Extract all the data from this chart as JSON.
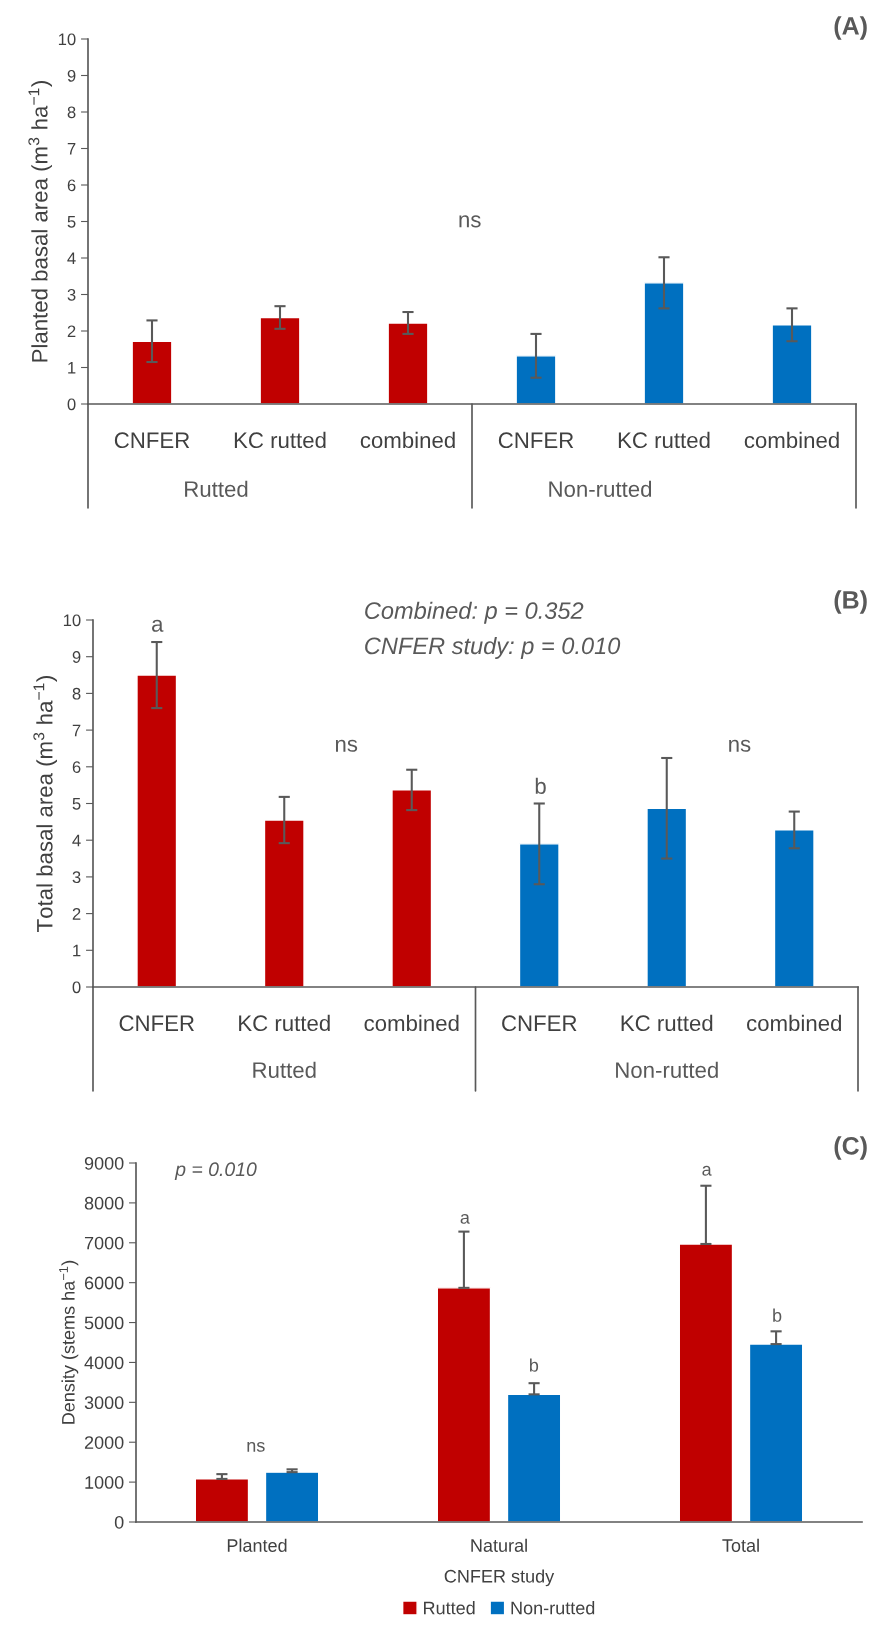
{
  "chart_data": [
    {
      "type": "bar",
      "title": "(A)",
      "ylabel": "Planted basal area (m$^{3}$ ha$^{−1}$)",
      "categories": [
        "CNFER",
        "KC rutted",
        "combined",
        "CNFER",
        "KC rutted",
        "combined"
      ],
      "series": [
        {
          "color": "#c00000",
          "values": [
            1.72,
            2.37,
            2.22,
            null,
            null,
            null
          ],
          "errors": [
            0.57,
            0.31,
            0.3,
            null,
            null,
            null
          ]
        },
        {
          "color": "#0070c0",
          "values": [
            null,
            null,
            null,
            1.32,
            3.32,
            2.17
          ],
          "errors": [
            null,
            null,
            null,
            0.6,
            0.7,
            0.45
          ]
        }
      ],
      "ylim": [
        0,
        10
      ],
      "yticks": [
        0,
        1,
        2,
        3,
        4,
        5,
        6,
        7,
        8,
        9,
        10
      ],
      "annotations": [
        "ns",
        "Rutted",
        "Non-rutted"
      ]
    },
    {
      "type": "bar",
      "title": "(B)",
      "ylabel": "Total basal area (m$^{3}$ ha$^{−1}$)",
      "categories": [
        "CNFER",
        "KC rutted",
        "combined",
        "CNFER",
        "KC rutted",
        "combined"
      ],
      "series": [
        {
          "color": "#c00000",
          "values": [
            8.5,
            4.55,
            5.37,
            null,
            null,
            null
          ],
          "errors": [
            0.9,
            0.63,
            0.55,
            null,
            null,
            null
          ]
        },
        {
          "color": "#0070c0",
          "values": [
            null,
            null,
            null,
            3.9,
            4.87,
            4.28
          ],
          "errors": [
            null,
            null,
            null,
            1.1,
            1.37,
            0.5
          ]
        }
      ],
      "ylim": [
        0,
        10
      ],
      "yticks": [
        0,
        1,
        2,
        3,
        4,
        5,
        6,
        7,
        8,
        9,
        10
      ],
      "annotations": [
        "Combined: p = 0.352",
        "CNFER study: p = 0.010",
        "a",
        "ns",
        "b",
        "ns",
        "Rutted",
        "Non-rutted"
      ]
    },
    {
      "type": "bar",
      "title": "(C)",
      "xlabel": "CNFER study",
      "ylabel": "Density (stems ha$^{−1}$)",
      "categories": [
        "Planted",
        "Natural",
        "Total"
      ],
      "series": [
        {
          "name": "Rutted",
          "color": "#c00000",
          "values": [
            1080,
            5870,
            6970
          ],
          "errors": [
            [
              1080,
              1200
            ],
            [
              5870,
              7280
            ],
            [
              6970,
              8430
            ]
          ]
        },
        {
          "name": "Non-rutted",
          "color": "#0070c0",
          "values": [
            1250,
            3200,
            4460
          ],
          "errors": [
            [
              1250,
              1320
            ],
            [
              3200,
              3480
            ],
            [
              4460,
              4780
            ]
          ]
        }
      ],
      "ylim": [
        0,
        9000
      ],
      "yticks": [
        0,
        1000,
        2000,
        3000,
        4000,
        5000,
        6000,
        7000,
        8000,
        9000
      ],
      "legend": "bottom",
      "annotations": [
        "p = 0.010",
        "ns",
        "a",
        "b",
        "a",
        "b"
      ]
    }
  ]
}
